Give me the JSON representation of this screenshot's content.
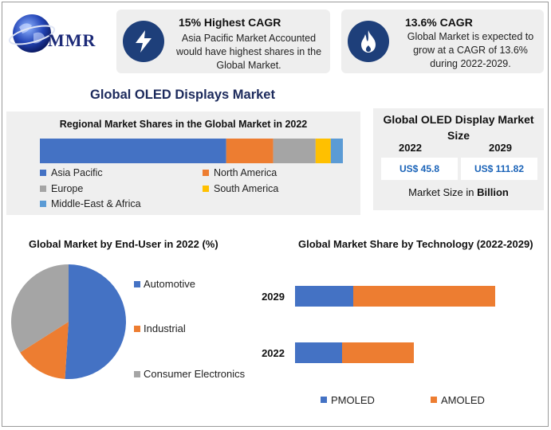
{
  "logo": {
    "text": "MMR",
    "icon": "globe-icon"
  },
  "highlights": [
    {
      "title": "15% Highest CAGR",
      "text": "Asia Pacific Market Accounted would have highest shares in the Global Market.",
      "icon": "lightning-icon"
    },
    {
      "title": "13.6% CAGR",
      "text": "Global Market is expected to grow at a CAGR of 13.6% during 2022-2029.",
      "icon": "flame-icon"
    }
  ],
  "main_title": "Global OLED Displays Market",
  "market_size": {
    "title": "Global OLED Display Market Size",
    "years": [
      "2022",
      "2029"
    ],
    "values": [
      "US$ 45.8",
      "US$ 111.82"
    ],
    "unit_prefix": "Market Size in",
    "unit_bold": "Billion"
  },
  "colors": {
    "blue": "#4472c4",
    "orange": "#ed7d31",
    "gray": "#a5a5a5",
    "yellow": "#ffc000",
    "light_blue": "#5b9bd5",
    "navy": "#1e3f7a"
  },
  "chart_data": [
    {
      "type": "bar",
      "orientation": "horizontal-stacked",
      "title": "Regional Market Shares in the Global Market in 2022",
      "series": [
        {
          "name": "Asia Pacific",
          "values": [
            61.5
          ],
          "color": "#4472c4"
        },
        {
          "name": "North America",
          "values": [
            15.5
          ],
          "color": "#ed7d31"
        },
        {
          "name": "Europe",
          "values": [
            14
          ],
          "color": "#a5a5a5"
        },
        {
          "name": "South America",
          "values": [
            5
          ],
          "color": "#ffc000"
        },
        {
          "name": "Middle-East & Africa",
          "values": [
            4
          ],
          "color": "#5b9bd5"
        }
      ],
      "xlim": [
        0,
        100
      ],
      "legend": "bottom"
    },
    {
      "type": "pie",
      "title": "Global Market by End-User in 2022 (%)",
      "labels": [
        "Automotive",
        "Industrial",
        "Consumer Electronics"
      ],
      "values": [
        51,
        15,
        34
      ],
      "colors": [
        "#4472c4",
        "#ed7d31",
        "#a5a5a5"
      ],
      "legend": "right"
    },
    {
      "type": "bar",
      "orientation": "horizontal-stacked",
      "title": "Global Market Share by Technology (2022-2029)",
      "categories": [
        "2029",
        "2022"
      ],
      "series": [
        {
          "name": "PMOLED",
          "values": [
            73,
            59
          ],
          "color": "#4472c4"
        },
        {
          "name": "AMOLED",
          "values": [
            178,
            90
          ],
          "color": "#ed7d31"
        }
      ],
      "xlim": [
        0,
        310
      ],
      "legend": "bottom"
    }
  ]
}
